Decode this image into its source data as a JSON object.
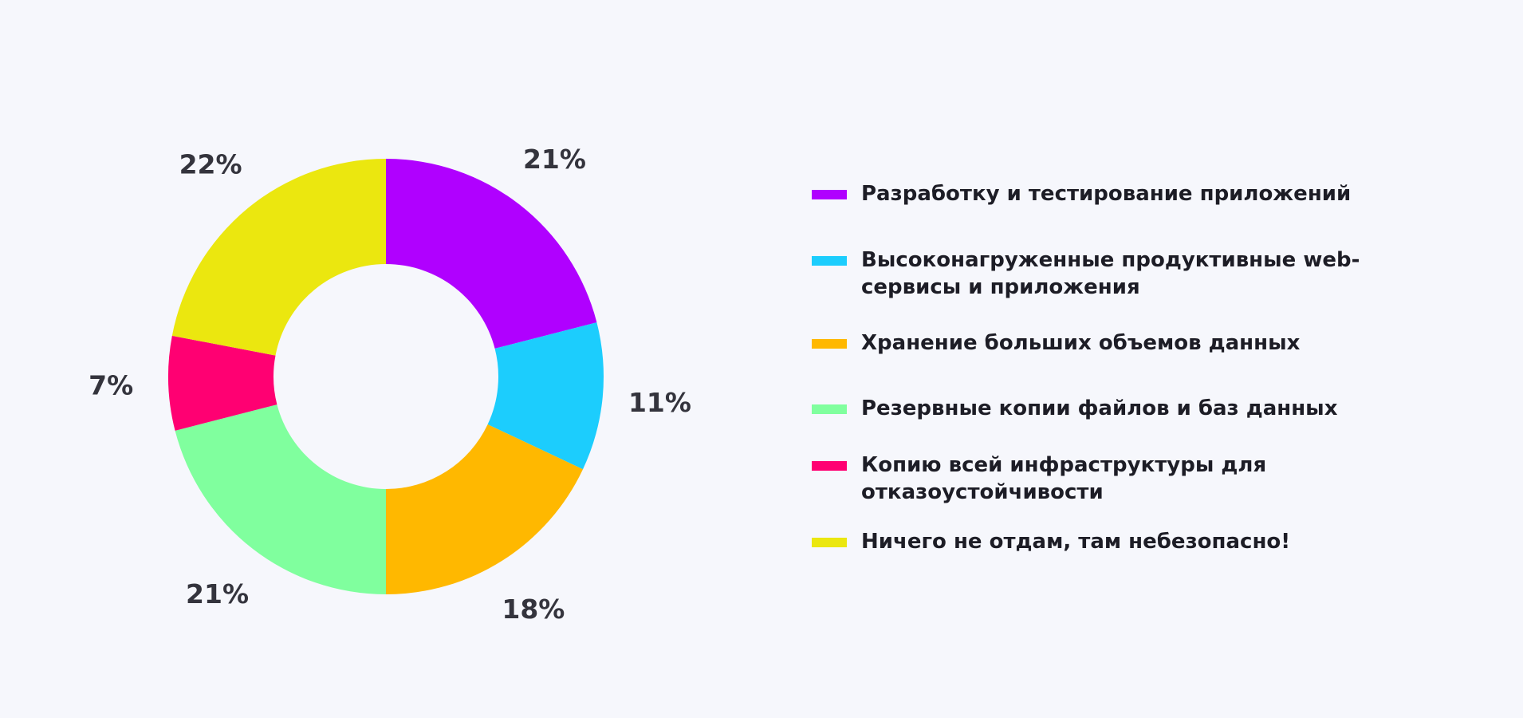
{
  "chart_data": {
    "type": "pie",
    "donut": true,
    "title": "",
    "legend_position": "right",
    "slices": [
      {
        "label": "Разработку и тестирование приложений",
        "value": 21,
        "value_label": "21%",
        "color": "#b000ff"
      },
      {
        "label": "Высоконагруженные продуктивные web-сервисы и приложения",
        "value": 11,
        "value_label": "11%",
        "color": "#1ccdfd"
      },
      {
        "label": "Хранение больших объемов данных",
        "value": 18,
        "value_label": "18%",
        "color": "#ffb800"
      },
      {
        "label": "Резервные копии файлов и баз данных",
        "value": 21,
        "value_label": "21%",
        "color": "#80ff9e"
      },
      {
        "label": "Копию всей инфраструктуры для отказоустойчивости",
        "value": 7,
        "value_label": "7%",
        "color": "#ff0072"
      },
      {
        "label": "Ничего не отдам, там небезопасно!",
        "value": 22,
        "value_label": "22%",
        "color": "#ebe70f"
      }
    ]
  }
}
